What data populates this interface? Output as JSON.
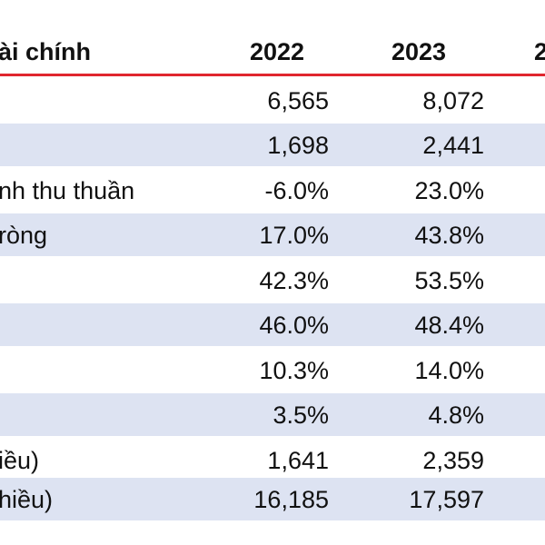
{
  "table": {
    "header": {
      "label": "ài chính",
      "col_2022": "2022",
      "col_2023": "2023",
      "col_next": "2"
    },
    "rows": [
      {
        "label": "",
        "v2022": "6,565",
        "v2023": "8,072",
        "shaded": false
      },
      {
        "label": "",
        "v2022": "1,698",
        "v2023": "2,441",
        "shaded": true
      },
      {
        "label": "nh thu thuần",
        "v2022": "-6.0%",
        "v2023": "23.0%",
        "shaded": false
      },
      {
        "label": "ròng",
        "v2022": "17.0%",
        "v2023": "43.8%",
        "shaded": true
      },
      {
        "label": "",
        "v2022": "42.3%",
        "v2023": "53.5%",
        "shaded": false
      },
      {
        "label": "",
        "v2022": "46.0%",
        "v2023": "48.4%",
        "shaded": true
      },
      {
        "label": "",
        "v2022": "10.3%",
        "v2023": "14.0%",
        "shaded": false
      },
      {
        "label": "",
        "v2022": "3.5%",
        "v2023": "4.8%",
        "shaded": true
      },
      {
        "label": "iều)",
        "v2022": "1,641",
        "v2023": "2,359",
        "shaded": false
      },
      {
        "label": "hiều)",
        "v2022": "16,185",
        "v2023": "17,597",
        "shaded": true
      }
    ]
  },
  "colors": {
    "header_rule": "#e0262e",
    "row_shade": "#dde3f2",
    "text": "#111111"
  }
}
